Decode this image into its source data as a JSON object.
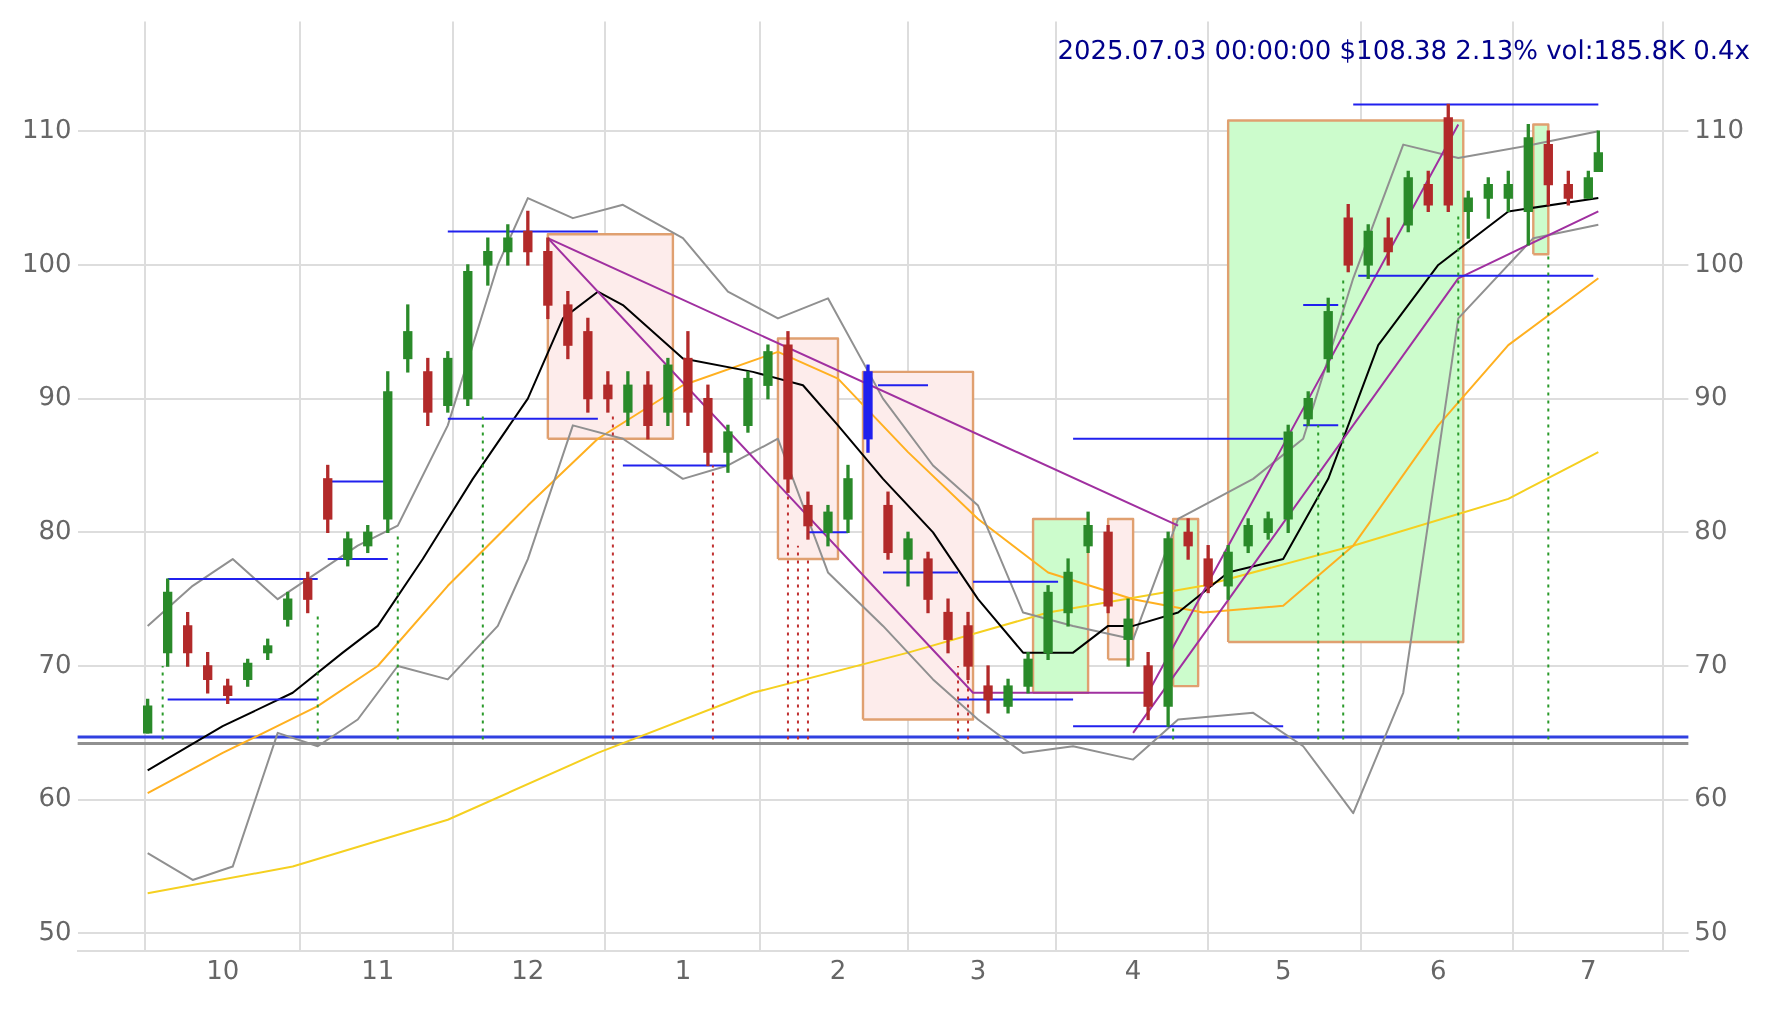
{
  "chart_data": {
    "type": "candlestick",
    "annotations": [
      "2025.07.03 00:00:00 $108.38 2.13% vol:185.8K 0.4x"
    ],
    "x": [
      "2024-09-16",
      "2024-09-20",
      "2024-09-24",
      "2024-09-28",
      "2024-10-02",
      "2024-10-06",
      "2024-10-10",
      "2024-10-14",
      "2024-10-18",
      "2024-10-22",
      "2024-10-26",
      "2024-10-30",
      "2024-11-03",
      "2024-11-07",
      "2024-11-11",
      "2024-11-15",
      "2024-11-19",
      "2024-11-23",
      "2024-11-27",
      "2024-12-01",
      "2024-12-05",
      "2024-12-09",
      "2024-12-13",
      "2024-12-17",
      "2024-12-21",
      "2024-12-25",
      "2024-12-29",
      "2025-01-02",
      "2025-01-06",
      "2025-01-10",
      "2025-01-14",
      "2025-01-18",
      "2025-01-22",
      "2025-01-26",
      "2025-01-30",
      "2025-02-03",
      "2025-02-07",
      "2025-02-11",
      "2025-02-15",
      "2025-02-19",
      "2025-02-23",
      "2025-02-27",
      "2025-03-03",
      "2025-03-07",
      "2025-03-11",
      "2025-03-15",
      "2025-03-19",
      "2025-03-23",
      "2025-03-27",
      "2025-03-31",
      "2025-04-04",
      "2025-04-08",
      "2025-04-12",
      "2025-04-16",
      "2025-04-20",
      "2025-04-24",
      "2025-04-28",
      "2025-05-02",
      "2025-05-06",
      "2025-05-10",
      "2025-05-14",
      "2025-05-18",
      "2025-05-22",
      "2025-05-26",
      "2025-05-30",
      "2025-06-03",
      "2025-06-07",
      "2025-06-11",
      "2025-06-15",
      "2025-06-19",
      "2025-06-23",
      "2025-06-27",
      "2025-07-01",
      "2025-07-03"
    ],
    "ohlc": [
      [
        65,
        67.5,
        65,
        67
      ],
      [
        71,
        76.5,
        70,
        75.5
      ],
      [
        73,
        74,
        70,
        71
      ],
      [
        70,
        71,
        68,
        69
      ],
      [
        68.5,
        69,
        67.2,
        67.8
      ],
      [
        69,
        70.5,
        68.5,
        70.2
      ],
      [
        71,
        72,
        70.5,
        71.5
      ],
      [
        73.5,
        75.5,
        73,
        75
      ],
      [
        76.5,
        77,
        74,
        75
      ],
      [
        84,
        85,
        80,
        81
      ],
      [
        78,
        80,
        77.5,
        79.5
      ],
      [
        79,
        80.5,
        78.5,
        80
      ],
      [
        81,
        92,
        80,
        90.5
      ],
      [
        93,
        97,
        92,
        95
      ],
      [
        92,
        93,
        88,
        89
      ],
      [
        89.5,
        93.5,
        89,
        93
      ],
      [
        90,
        100,
        89.5,
        99.5
      ],
      [
        100,
        102,
        98.5,
        101
      ],
      [
        101,
        103,
        100,
        102
      ],
      [
        102.5,
        104,
        100,
        101
      ],
      [
        101,
        102,
        96,
        97
      ],
      [
        97,
        98,
        93,
        94
      ],
      [
        95,
        96,
        89,
        90
      ],
      [
        91,
        92,
        89,
        90
      ],
      [
        89,
        92,
        88,
        91
      ],
      [
        91,
        92,
        87,
        88
      ],
      [
        89,
        93,
        88,
        92.5
      ],
      [
        93,
        95,
        88,
        89
      ],
      [
        90,
        91,
        85,
        86
      ],
      [
        86,
        88,
        84.5,
        87.5
      ],
      [
        88,
        92,
        87.5,
        91.5
      ],
      [
        91,
        94,
        90,
        93.5
      ],
      [
        94,
        95,
        83,
        84
      ],
      [
        82,
        83,
        79.5,
        80.5
      ],
      [
        80,
        82,
        79,
        81.5
      ],
      [
        81,
        85,
        80,
        84
      ],
      [
        92,
        92.5,
        86,
        87
      ],
      [
        82,
        83,
        78,
        78.5
      ],
      [
        78,
        80,
        76,
        79.5
      ],
      [
        78,
        78.5,
        74,
        75
      ],
      [
        74,
        75,
        71,
        72
      ],
      [
        73,
        74,
        69,
        70
      ],
      [
        68.5,
        70,
        66.5,
        67.5
      ],
      [
        67,
        69,
        66.5,
        68.5
      ],
      [
        68.5,
        71,
        68,
        70.5
      ],
      [
        71,
        76,
        70.5,
        75.5
      ],
      [
        74,
        78,
        73,
        77
      ],
      [
        79,
        81.5,
        78.5,
        80.5
      ],
      [
        80,
        80.5,
        74,
        74.5
      ],
      [
        72,
        75,
        70,
        73.5
      ],
      [
        70,
        71,
        66,
        67
      ],
      [
        67,
        80,
        65.5,
        79.5
      ],
      [
        80,
        81,
        78,
        79
      ],
      [
        78,
        79,
        75.5,
        76
      ],
      [
        76,
        79,
        75,
        78.5
      ],
      [
        79,
        81,
        78.5,
        80.5
      ],
      [
        80,
        81.5,
        79.5,
        81
      ],
      [
        81,
        88,
        80,
        87.5
      ],
      [
        88.5,
        90.5,
        88,
        90
      ],
      [
        93,
        97.5,
        92,
        96.5
      ],
      [
        103.5,
        104.5,
        99.5,
        100
      ],
      [
        100,
        103,
        99,
        102.5
      ],
      [
        102,
        103.5,
        100,
        101
      ],
      [
        103,
        107,
        102.5,
        106.5
      ],
      [
        106,
        107,
        104,
        104.5
      ],
      [
        111,
        112,
        104,
        104.5
      ],
      [
        104,
        105.5,
        102,
        105
      ],
      [
        105,
        106.5,
        103.5,
        106
      ],
      [
        105,
        107,
        104,
        106
      ],
      [
        104,
        110.5,
        101.5,
        109.5
      ],
      [
        109,
        110,
        104.5,
        106
      ],
      [
        106,
        107,
        104.5,
        105
      ],
      [
        105,
        107,
        105,
        106.5
      ],
      [
        107,
        110,
        107,
        108.38
      ]
    ],
    "colors": [
      "#2a8a2a",
      "#2a8a2a",
      "#b22a2a",
      "#b22a2a",
      "#b22a2a",
      "#2a8a2a",
      "#2a8a2a",
      "#2a8a2a",
      "#b22a2a",
      "#b22a2a",
      "#2a8a2a",
      "#2a8a2a",
      "#2a8a2a",
      "#2a8a2a",
      "#b22a2a",
      "#2a8a2a",
      "#2a8a2a",
      "#2a8a2a",
      "#2a8a2a",
      "#b22a2a",
      "#b22a2a",
      "#b22a2a",
      "#b22a2a",
      "#b22a2a",
      "#2a8a2a",
      "#b22a2a",
      "#2a8a2a",
      "#b22a2a",
      "#b22a2a",
      "#2a8a2a",
      "#2a8a2a",
      "#2a8a2a",
      "#b22a2a",
      "#b22a2a",
      "#2a8a2a",
      "#2a8a2a",
      "#2020ee",
      "#b22a2a",
      "#2a8a2a",
      "#b22a2a",
      "#b22a2a",
      "#b22a2a",
      "#b22a2a",
      "#2a8a2a",
      "#2a8a2a",
      "#2a8a2a",
      "#2a8a2a",
      "#2a8a2a",
      "#b22a2a",
      "#2a8a2a",
      "#b22a2a",
      "#2a8a2a",
      "#b22a2a",
      "#b22a2a",
      "#2a8a2a",
      "#2a8a2a",
      "#2a8a2a",
      "#2a8a2a",
      "#2a8a2a",
      "#2a8a2a",
      "#b22a2a",
      "#2a8a2a",
      "#b22a2a",
      "#2a8a2a",
      "#b22a2a",
      "#b22a2a",
      "#2a8a2a",
      "#2a8a2a",
      "#2a8a2a",
      "#2a8a2a",
      "#b22a2a",
      "#b22a2a",
      "#2a8a2a",
      "#2a8a2a"
    ],
    "xlim": [
      "2024-09-02",
      "2025-07-21"
    ],
    "xticks": [
      {
        "value": "2024-10-01",
        "label": "10"
      },
      {
        "value": "2024-11-01",
        "label": "11"
      },
      {
        "value": "2024-12-01",
        "label": "12"
      },
      {
        "value": "2025-01-01",
        "label": "1"
      },
      {
        "value": "2025-02-01",
        "label": "2"
      },
      {
        "value": "2025-03-01",
        "label": "3"
      },
      {
        "value": "2025-04-01",
        "label": "4"
      },
      {
        "value": "2025-05-01",
        "label": "5"
      },
      {
        "value": "2025-06-01",
        "label": "6"
      },
      {
        "value": "2025-07-01",
        "label": "7"
      }
    ],
    "ylim": [
      48.7,
      118.2
    ],
    "yticks": [
      50,
      60,
      70,
      80,
      90,
      100,
      110
    ],
    "y2lim": [
      48.7,
      118.2
    ],
    "y2ticks": [
      50,
      60,
      70,
      80,
      90,
      100,
      110
    ],
    "grid": true,
    "marker": "none",
    "ref_lines": [
      {
        "axis": "y",
        "value": 64.2,
        "color": "#909090"
      },
      {
        "axis": "y",
        "value": 64.7,
        "color": "#3040e0"
      }
    ],
    "series": [
      {
        "type": "area",
        "color": "#fdeceb",
        "x": [
          "2024-12-05",
          "2024-12-05",
          "2024-12-30",
          "2024-12-30",
          "2024-12-05"
        ],
        "values": [
          87,
          102.3,
          102.3,
          87,
          87
        ]
      },
      {
        "type": "area",
        "color": "#fdeceb",
        "x": [
          "2025-01-20",
          "2025-01-20",
          "2025-02-01",
          "2025-02-01",
          "2025-01-20"
        ],
        "values": [
          78,
          94.5,
          94.5,
          78,
          78
        ]
      },
      {
        "type": "area",
        "color": "#fdeceb",
        "x": [
          "2025-02-06",
          "2025-02-06",
          "2025-02-28",
          "2025-02-28",
          "2025-02-06"
        ],
        "values": [
          66,
          92,
          92,
          66,
          66
        ]
      },
      {
        "type": "area",
        "color": "#ccfccc",
        "x": [
          "2025-03-12",
          "2025-03-12",
          "2025-03-23",
          "2025-03-23",
          "2025-03-12"
        ],
        "values": [
          68,
          81,
          81,
          68,
          68
        ]
      },
      {
        "type": "area",
        "color": "#fdeceb",
        "x": [
          "2025-03-27",
          "2025-03-27",
          "2025-04-01",
          "2025-04-01",
          "2025-03-27"
        ],
        "values": [
          70.5,
          81,
          81,
          70.5,
          70.5
        ]
      },
      {
        "type": "area",
        "color": "#ccfccc",
        "x": [
          "2025-04-09",
          "2025-04-09",
          "2025-04-14",
          "2025-04-14",
          "2025-04-09"
        ],
        "values": [
          68.5,
          81,
          81,
          68.5,
          68.5
        ]
      },
      {
        "type": "area",
        "color": "#ccfccc",
        "x": [
          "2025-04-20",
          "2025-04-20",
          "2025-06-06",
          "2025-06-06",
          "2025-04-20"
        ],
        "values": [
          71.8,
          110.8,
          110.8,
          71.8,
          71.8
        ]
      },
      {
        "type": "area",
        "color": "#ccfccc",
        "x": [
          "2025-06-20",
          "2025-06-20",
          "2025-06-23",
          "2025-06-23",
          "2025-06-20"
        ],
        "values": [
          100.8,
          110.5,
          110.5,
          100.8,
          100.8
        ]
      },
      {
        "type": "line",
        "color": "#f5d020",
        "x": [
          "2024-09-16",
          "2024-10-15",
          "2024-11-15",
          "2024-12-15",
          "2025-01-15",
          "2025-02-15",
          "2025-03-15",
          "2025-04-15",
          "2025-05-15",
          "2025-06-15",
          "2025-07-03"
        ],
        "values": [
          53,
          55,
          58.5,
          63.5,
          68,
          71,
          74,
          76,
          79,
          82.5,
          86
        ]
      },
      {
        "type": "line",
        "color": "#ffb020",
        "x": [
          "2024-09-16",
          "2024-10-01",
          "2024-10-20",
          "2024-11-01",
          "2024-11-15",
          "2024-12-01",
          "2024-12-15",
          "2025-01-01",
          "2025-01-20",
          "2025-02-01",
          "2025-02-15",
          "2025-03-01",
          "2025-03-15",
          "2025-04-01",
          "2025-04-15",
          "2025-05-01",
          "2025-05-15",
          "2025-06-01",
          "2025-06-15",
          "2025-07-03"
        ],
        "values": [
          60.5,
          63.5,
          67,
          70,
          76,
          82,
          87,
          91,
          93.5,
          91.5,
          86,
          81,
          77,
          75,
          74,
          74.5,
          79,
          88,
          94,
          99
        ]
      },
      {
        "type": "line",
        "color": "#909090",
        "x": [
          "2024-09-16",
          "2024-09-25",
          "2024-10-03",
          "2024-10-12",
          "2024-10-20",
          "2024-10-28",
          "2024-11-05",
          "2024-11-15",
          "2024-11-25",
          "2024-12-01",
          "2024-12-10",
          "2024-12-20",
          "2025-01-01",
          "2025-01-10",
          "2025-01-20",
          "2025-01-30",
          "2025-02-10",
          "2025-02-20",
          "2025-03-01",
          "2025-03-10",
          "2025-03-20",
          "2025-04-01",
          "2025-04-10",
          "2025-04-25",
          "2025-05-05",
          "2025-05-15",
          "2025-05-25",
          "2025-06-05",
          "2025-06-20",
          "2025-07-03"
        ],
        "values": [
          73,
          76,
          78,
          75,
          77,
          79,
          80.5,
          88,
          100,
          105,
          103.5,
          104.5,
          102,
          98,
          96,
          97.5,
          90,
          85,
          82,
          74,
          73,
          72,
          81,
          84,
          87,
          99,
          109,
          108,
          109,
          110
        ]
      },
      {
        "type": "line",
        "color": "#909090",
        "x": [
          "2024-09-16",
          "2024-09-25",
          "2024-10-03",
          "2024-10-12",
          "2024-10-20",
          "2024-10-28",
          "2024-11-05",
          "2024-11-15",
          "2024-11-25",
          "2024-12-01",
          "2024-12-10",
          "2024-12-20",
          "2025-01-01",
          "2025-01-10",
          "2025-01-20",
          "2025-01-30",
          "2025-02-10",
          "2025-02-20",
          "2025-03-01",
          "2025-03-10",
          "2025-03-20",
          "2025-04-01",
          "2025-04-10",
          "2025-04-25",
          "2025-05-05",
          "2025-05-15",
          "2025-05-25",
          "2025-06-05",
          "2025-06-20",
          "2025-07-03"
        ],
        "values": [
          56,
          54,
          55,
          65,
          64,
          66,
          70,
          69,
          73,
          78,
          88,
          87,
          84,
          85,
          87,
          77,
          73,
          69,
          66,
          63.5,
          64,
          63,
          66,
          66.5,
          64,
          59,
          68,
          96,
          102,
          103
        ]
      },
      {
        "type": "line",
        "color": "#000000",
        "x": [
          "2024-09-16",
          "2024-10-01",
          "2024-10-15",
          "2024-10-25",
          "2024-11-01",
          "2024-11-10",
          "2024-11-20",
          "2024-12-01",
          "2024-12-08",
          "2024-12-15",
          "2024-12-20",
          "2025-01-01",
          "2025-01-15",
          "2025-01-25",
          "2025-02-01",
          "2025-02-10",
          "2025-02-20",
          "2025-03-01",
          "2025-03-10",
          "2025-03-20",
          "2025-03-27",
          "2025-04-01",
          "2025-04-10",
          "2025-04-20",
          "2025-05-01",
          "2025-05-10",
          "2025-05-20",
          "2025-06-01",
          "2025-06-15",
          "2025-07-03"
        ],
        "values": [
          62.2,
          65.5,
          68,
          71,
          73,
          78,
          84,
          90,
          96,
          98,
          97,
          93,
          92,
          91,
          88,
          84,
          80,
          75,
          71,
          71,
          73,
          73,
          74,
          77,
          78,
          84,
          94,
          100,
          104,
          105
        ]
      },
      {
        "type": "line",
        "color": "#a030a0",
        "x": [
          "2024-12-05",
          "2025-04-10"
        ],
        "values": [
          102,
          80.5
        ]
      },
      {
        "type": "line",
        "color": "#a030a0",
        "x": [
          "2024-12-05",
          "2025-02-28",
          "2025-04-04",
          "2025-06-05"
        ],
        "values": [
          102,
          68,
          68,
          110.5
        ]
      },
      {
        "type": "line",
        "color": "#a030a0",
        "x": [
          "2025-04-01",
          "2025-06-05",
          "2025-07-03"
        ],
        "values": [
          65,
          99,
          104
        ]
      },
      {
        "type": "line",
        "color": "#2020ee",
        "x": [
          "2024-09-20",
          "2024-10-20"
        ],
        "values": [
          76.5,
          76.5
        ]
      },
      {
        "type": "line",
        "color": "#2020ee",
        "x": [
          "2024-09-20",
          "2024-10-20"
        ],
        "values": [
          67.5,
          67.5
        ]
      },
      {
        "type": "line",
        "color": "#2020ee",
        "x": [
          "2024-10-22",
          "2024-11-03"
        ],
        "values": [
          83.8,
          83.8
        ]
      },
      {
        "type": "line",
        "color": "#2020ee",
        "x": [
          "2024-10-22",
          "2024-11-03"
        ],
        "values": [
          78,
          78
        ]
      },
      {
        "type": "line",
        "color": "#2020ee",
        "x": [
          "2024-11-15",
          "2024-12-15"
        ],
        "values": [
          102.5,
          102.5
        ]
      },
      {
        "type": "line",
        "color": "#2020ee",
        "x": [
          "2024-11-15",
          "2024-12-15"
        ],
        "values": [
          88.5,
          88.5
        ]
      },
      {
        "type": "line",
        "color": "#2020ee",
        "x": [
          "2024-12-20",
          "2025-01-10"
        ],
        "values": [
          85,
          85
        ]
      },
      {
        "type": "line",
        "color": "#2020ee",
        "x": [
          "2025-01-26",
          "2025-02-03"
        ],
        "values": [
          80,
          80
        ]
      },
      {
        "type": "line",
        "color": "#2020ee",
        "x": [
          "2025-02-09",
          "2025-02-19"
        ],
        "values": [
          91,
          91
        ]
      },
      {
        "type": "line",
        "color": "#2020ee",
        "x": [
          "2025-02-10",
          "2025-02-25"
        ],
        "values": [
          77,
          77
        ]
      },
      {
        "type": "line",
        "color": "#2020ee",
        "x": [
          "2025-02-25",
          "2025-03-20"
        ],
        "values": [
          67.5,
          67.5
        ]
      },
      {
        "type": "line",
        "color": "#2020ee",
        "x": [
          "2025-02-28",
          "2025-03-17"
        ],
        "values": [
          76.3,
          76.3
        ]
      },
      {
        "type": "line",
        "color": "#2020ee",
        "x": [
          "2025-03-20",
          "2025-05-01"
        ],
        "values": [
          87,
          87
        ]
      },
      {
        "type": "line",
        "color": "#2020ee",
        "x": [
          "2025-03-20",
          "2025-05-01"
        ],
        "values": [
          65.5,
          65.5
        ]
      },
      {
        "type": "line",
        "color": "#2020ee",
        "x": [
          "2025-05-05",
          "2025-05-12"
        ],
        "values": [
          97,
          97
        ]
      },
      {
        "type": "line",
        "color": "#2020ee",
        "x": [
          "2025-05-05",
          "2025-05-12"
        ],
        "values": [
          88,
          88
        ]
      },
      {
        "type": "line",
        "color": "#2020ee",
        "x": [
          "2025-05-15",
          "2025-07-03"
        ],
        "values": [
          112,
          112
        ]
      },
      {
        "type": "line",
        "color": "#2020ee",
        "x": [
          "2025-05-16",
          "2025-07-02"
        ],
        "values": [
          99.2,
          99.2
        ]
      },
      {
        "type": "line",
        "color": "#2a9a2a",
        "line_style": "dotted",
        "x": [
          "2024-09-19",
          "2024-09-19"
        ],
        "values": [
          64.5,
          70
        ]
      },
      {
        "type": "line",
        "color": "#2a9a2a",
        "line_style": "dotted",
        "x": [
          "2024-10-20",
          "2024-10-20"
        ],
        "values": [
          64.5,
          74
        ]
      },
      {
        "type": "line",
        "color": "#2a9a2a",
        "line_style": "dotted",
        "x": [
          "2024-11-05",
          "2024-11-05"
        ],
        "values": [
          64.5,
          80
        ]
      },
      {
        "type": "line",
        "color": "#2a9a2a",
        "line_style": "dotted",
        "x": [
          "2024-11-22",
          "2024-11-22"
        ],
        "values": [
          64.5,
          89
        ]
      },
      {
        "type": "line",
        "color": "#2a9a2a",
        "line_style": "dotted",
        "x": [
          "2025-04-09",
          "2025-04-09"
        ],
        "values": [
          64.5,
          65.5
        ]
      },
      {
        "type": "line",
        "color": "#2a9a2a",
        "line_style": "dotted",
        "x": [
          "2025-05-08",
          "2025-05-08"
        ],
        "values": [
          64.5,
          88
        ]
      },
      {
        "type": "line",
        "color": "#2a9a2a",
        "line_style": "dotted",
        "x": [
          "2025-05-13",
          "2025-05-13"
        ],
        "values": [
          64.5,
          99
        ]
      },
      {
        "type": "line",
        "color": "#2a9a2a",
        "line_style": "dotted",
        "x": [
          "2025-06-05",
          "2025-06-05"
        ],
        "values": [
          64.5,
          104
        ]
      },
      {
        "type": "line",
        "color": "#2a9a2a",
        "line_style": "dotted",
        "x": [
          "2025-06-23",
          "2025-06-23"
        ],
        "values": [
          64.5,
          101
        ]
      },
      {
        "type": "line",
        "color": "#c03030",
        "line_style": "dotted",
        "x": [
          "2024-12-18",
          "2024-12-18"
        ],
        "values": [
          64.5,
          89
        ]
      },
      {
        "type": "line",
        "color": "#c03030",
        "line_style": "dotted",
        "x": [
          "2025-01-07",
          "2025-01-07"
        ],
        "values": [
          64.5,
          85
        ]
      },
      {
        "type": "line",
        "color": "#c03030",
        "line_style": "dotted",
        "x": [
          "2025-01-22",
          "2025-01-22"
        ],
        "values": [
          64.5,
          83
        ]
      },
      {
        "type": "line",
        "color": "#c03030",
        "line_style": "dotted",
        "x": [
          "2025-01-24",
          "2025-01-24"
        ],
        "values": [
          64.5,
          79
        ]
      },
      {
        "type": "line",
        "color": "#c03030",
        "line_style": "dotted",
        "x": [
          "2025-01-26",
          "2025-01-26"
        ],
        "values": [
          64.5,
          78
        ]
      },
      {
        "type": "line",
        "color": "#c03030",
        "line_style": "dotted",
        "x": [
          "2025-02-25",
          "2025-02-25"
        ],
        "values": [
          64.5,
          70
        ]
      },
      {
        "type": "line",
        "color": "#c03030",
        "line_style": "dotted",
        "x": [
          "2025-02-27",
          "2025-02-27"
        ],
        "values": [
          64.5,
          69
        ]
      }
    ]
  }
}
